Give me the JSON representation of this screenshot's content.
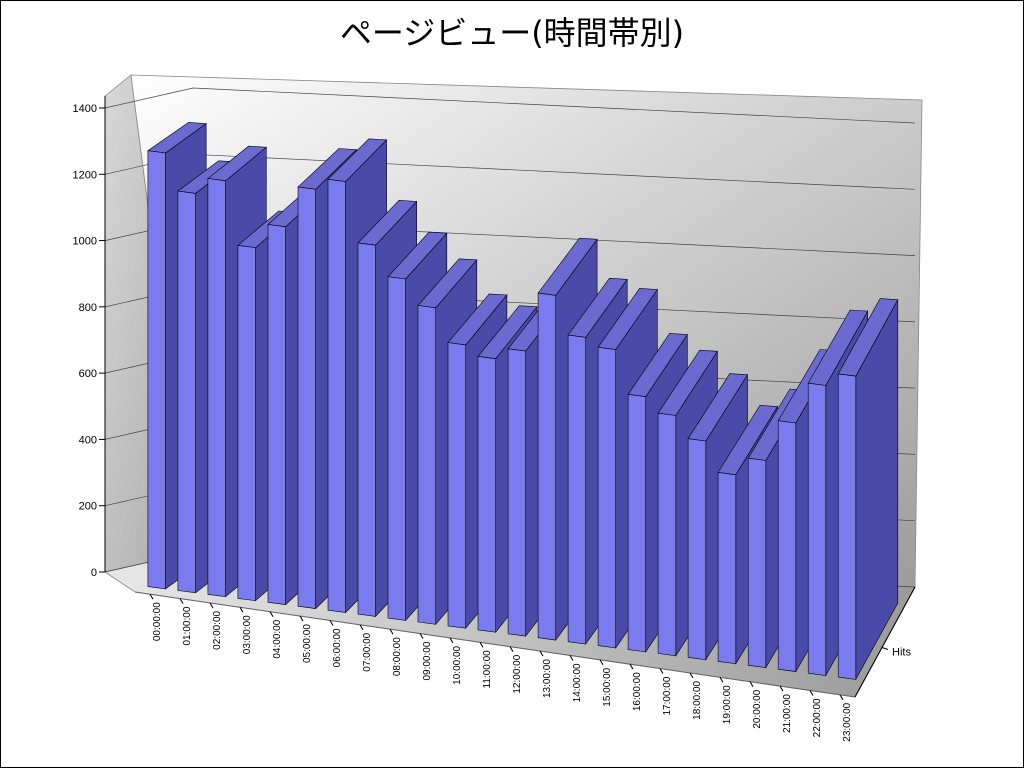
{
  "chart_data": {
    "type": "bar",
    "title": "ページビュー(時間帯別)",
    "categories": [
      "00:00:00",
      "01:00:00",
      "02:00:00",
      "03:00:00",
      "04:00:00",
      "05:00:00",
      "06:00:00",
      "07:00:00",
      "08:00:00",
      "09:00:00",
      "10:00:00",
      "11:00:00",
      "12:00:00",
      "13:00:00",
      "14:00:00",
      "15:00:00",
      "16:00:00",
      "17:00:00",
      "18:00:00",
      "19:00:00",
      "20:00:00",
      "21:00:00",
      "22:00:00",
      "23:00:00"
    ],
    "series": [
      {
        "name": "Hits",
        "values": [
          1315,
          1205,
          1255,
          1065,
          1140,
          1265,
          1300,
          1120,
          1030,
          955,
          855,
          825,
          860,
          1040,
          925,
          900,
          770,
          725,
          660,
          570,
          625,
          750,
          875,
          915
        ]
      }
    ],
    "yticks": [
      "0",
      "200",
      "400",
      "600",
      "800",
      "1000",
      "1200",
      "1400"
    ],
    "ylim": [
      0,
      1400
    ],
    "grid": true,
    "colors": {
      "bar_front": "#7b7bf0",
      "bar_side": "#4a4aa8",
      "bar_top": "#6a6ad0"
    }
  }
}
